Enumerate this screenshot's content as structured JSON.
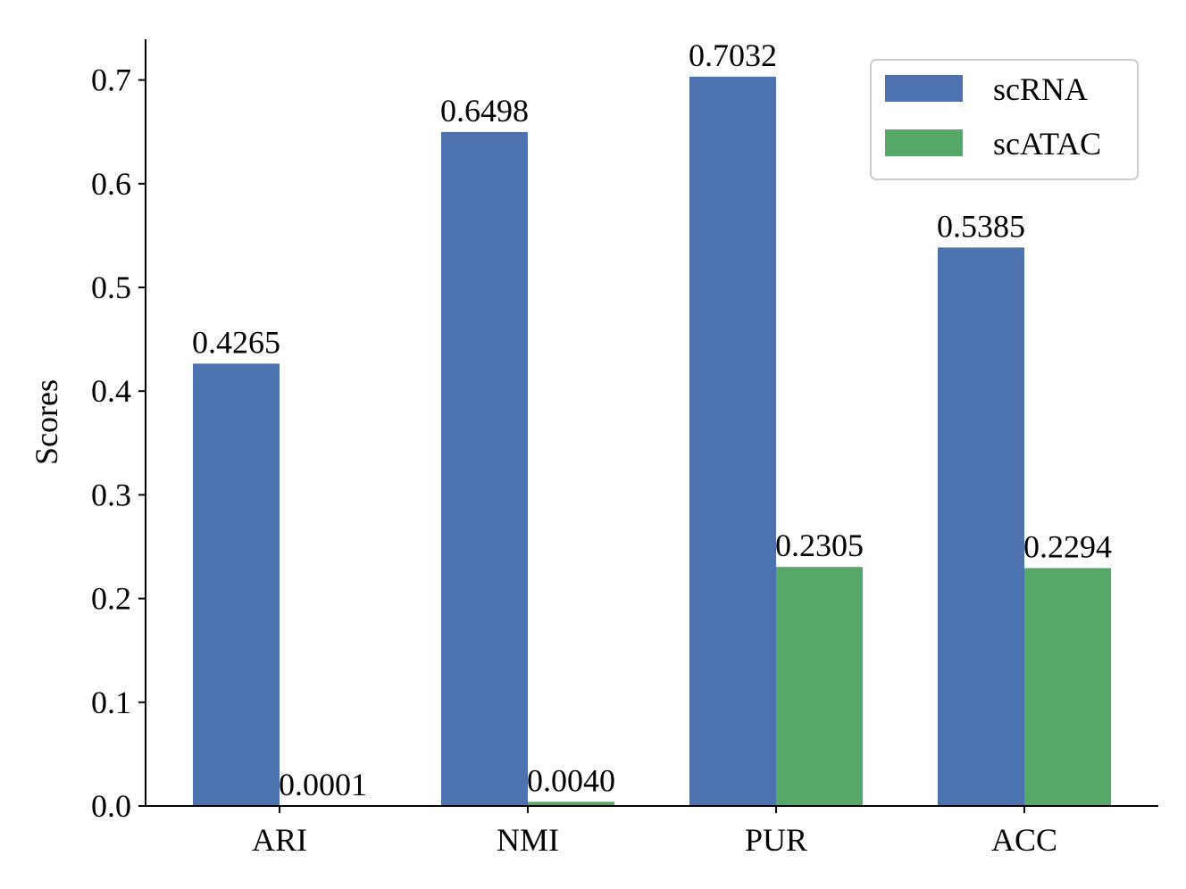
{
  "chart_data": {
    "type": "bar",
    "categories": [
      "ARI",
      "NMI",
      "PUR",
      "ACC"
    ],
    "series": [
      {
        "name": "scRNA",
        "values": [
          0.4265,
          0.6498,
          0.7032,
          0.5385
        ],
        "labels": [
          "0.4265",
          "0.6498",
          "0.7032",
          "0.5385"
        ],
        "color": "#4c72b0"
      },
      {
        "name": "scATAC",
        "values": [
          0.0001,
          0.004,
          0.2305,
          0.2294
        ],
        "labels": [
          "0.0001",
          "0.0040",
          "0.2305",
          "0.2294"
        ],
        "color": "#55a868"
      }
    ],
    "ylabel": "Scores",
    "xlabel": "",
    "ylim": [
      0,
      0.74
    ],
    "yticks": [
      "0.0",
      "0.1",
      "0.2",
      "0.3",
      "0.4",
      "0.5",
      "0.6",
      "0.7"
    ],
    "grid": false,
    "legend": "top-right"
  }
}
